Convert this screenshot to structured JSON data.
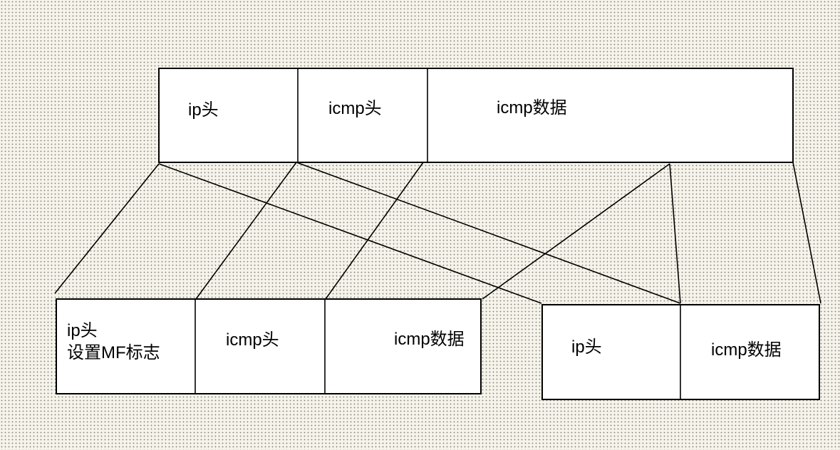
{
  "original_packet": {
    "ip_header": "ip头",
    "icmp_header": "icmp头",
    "icmp_data": "icmp数据"
  },
  "fragment_1": {
    "ip_header_line1": "ip头",
    "ip_header_line2": "设置MF标志",
    "icmp_header": "icmp头",
    "icmp_data": "icmp数据"
  },
  "fragment_2": {
    "ip_header": "ip头",
    "icmp_data": "icmp数据"
  },
  "colors": {
    "background": "#f6f4ea",
    "box_fill": "#ffffff",
    "stroke": "#000000"
  }
}
